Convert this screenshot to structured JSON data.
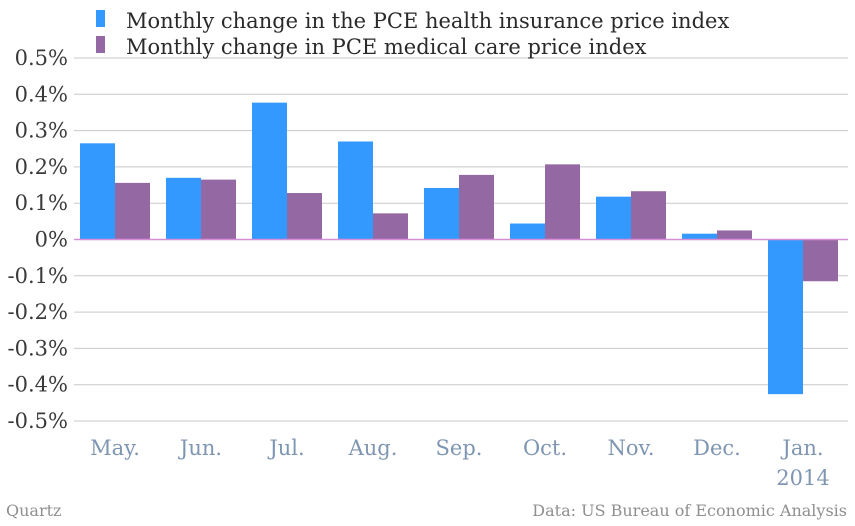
{
  "chart_data": {
    "type": "bar",
    "categories": [
      "May.",
      "Jun.",
      "Jul.",
      "Aug.",
      "Sep.",
      "Oct.",
      "Nov.",
      "Dec.",
      "Jan."
    ],
    "category_sublabels": [
      "",
      "",
      "",
      "",
      "",
      "",
      "",
      "",
      "2014"
    ],
    "series": [
      {
        "name": "Monthly change in the PCE health insurance price index",
        "color": "#3399ff",
        "values": [
          0.265,
          0.17,
          0.377,
          0.27,
          0.142,
          0.044,
          0.118,
          0.016,
          -0.426
        ]
      },
      {
        "name": "Monthly change in PCE medical care price index",
        "color": "#9368a3",
        "values": [
          0.156,
          0.165,
          0.128,
          0.072,
          0.178,
          0.207,
          0.133,
          0.025,
          -0.115
        ]
      }
    ],
    "ylim": [
      -0.5,
      0.5
    ],
    "yticks": [
      0.5,
      0.4,
      0.3,
      0.2,
      0.1,
      0,
      -0.1,
      -0.2,
      -0.3,
      -0.4,
      -0.5
    ],
    "ytick_labels": [
      "0.5%",
      "0.4%",
      "0.3%",
      "0.2%",
      "0.1%",
      "0%",
      "-0.1%",
      "-0.2%",
      "-0.3%",
      "-0.4%",
      "-0.5%"
    ],
    "grid": true,
    "zero_line_color": "#d68fd6",
    "legend": "top-left",
    "title": "",
    "xlabel": "",
    "ylabel": ""
  },
  "footer": {
    "source_left": "Quartz",
    "source_right": "Data: US Bureau of Economic Analysis"
  }
}
